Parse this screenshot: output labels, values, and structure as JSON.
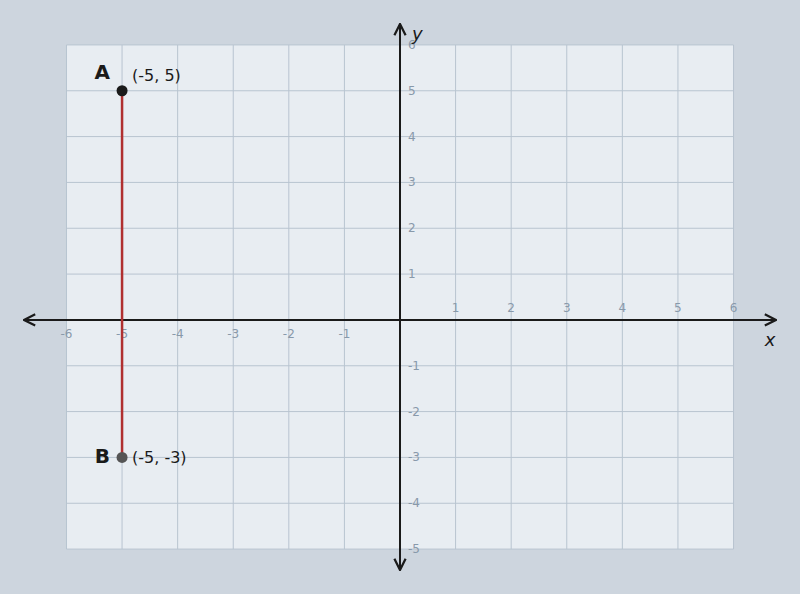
{
  "chart_data": {
    "type": "line",
    "x": [
      -5,
      -5
    ],
    "values": [
      5,
      -3
    ],
    "labels": [
      "A",
      "B"
    ],
    "value_labels": [
      "(-5, 5)",
      "(-5, -3)"
    ],
    "color": "#b03030",
    "colors": [
      "#1a1a1a",
      "#555555"
    ],
    "marker": "circle",
    "x_label": "x",
    "y_label": "y",
    "xlim": [
      -6.8,
      6.8
    ],
    "ylim": [
      -5.5,
      6.5
    ],
    "xticks": [
      -6,
      -5,
      -4,
      -3,
      -2,
      -1,
      1,
      2,
      3,
      4,
      5,
      6
    ],
    "yticks": [
      -5,
      -4,
      -3,
      -2,
      -1,
      1,
      2,
      3,
      4,
      5,
      6
    ],
    "grid": true
  }
}
